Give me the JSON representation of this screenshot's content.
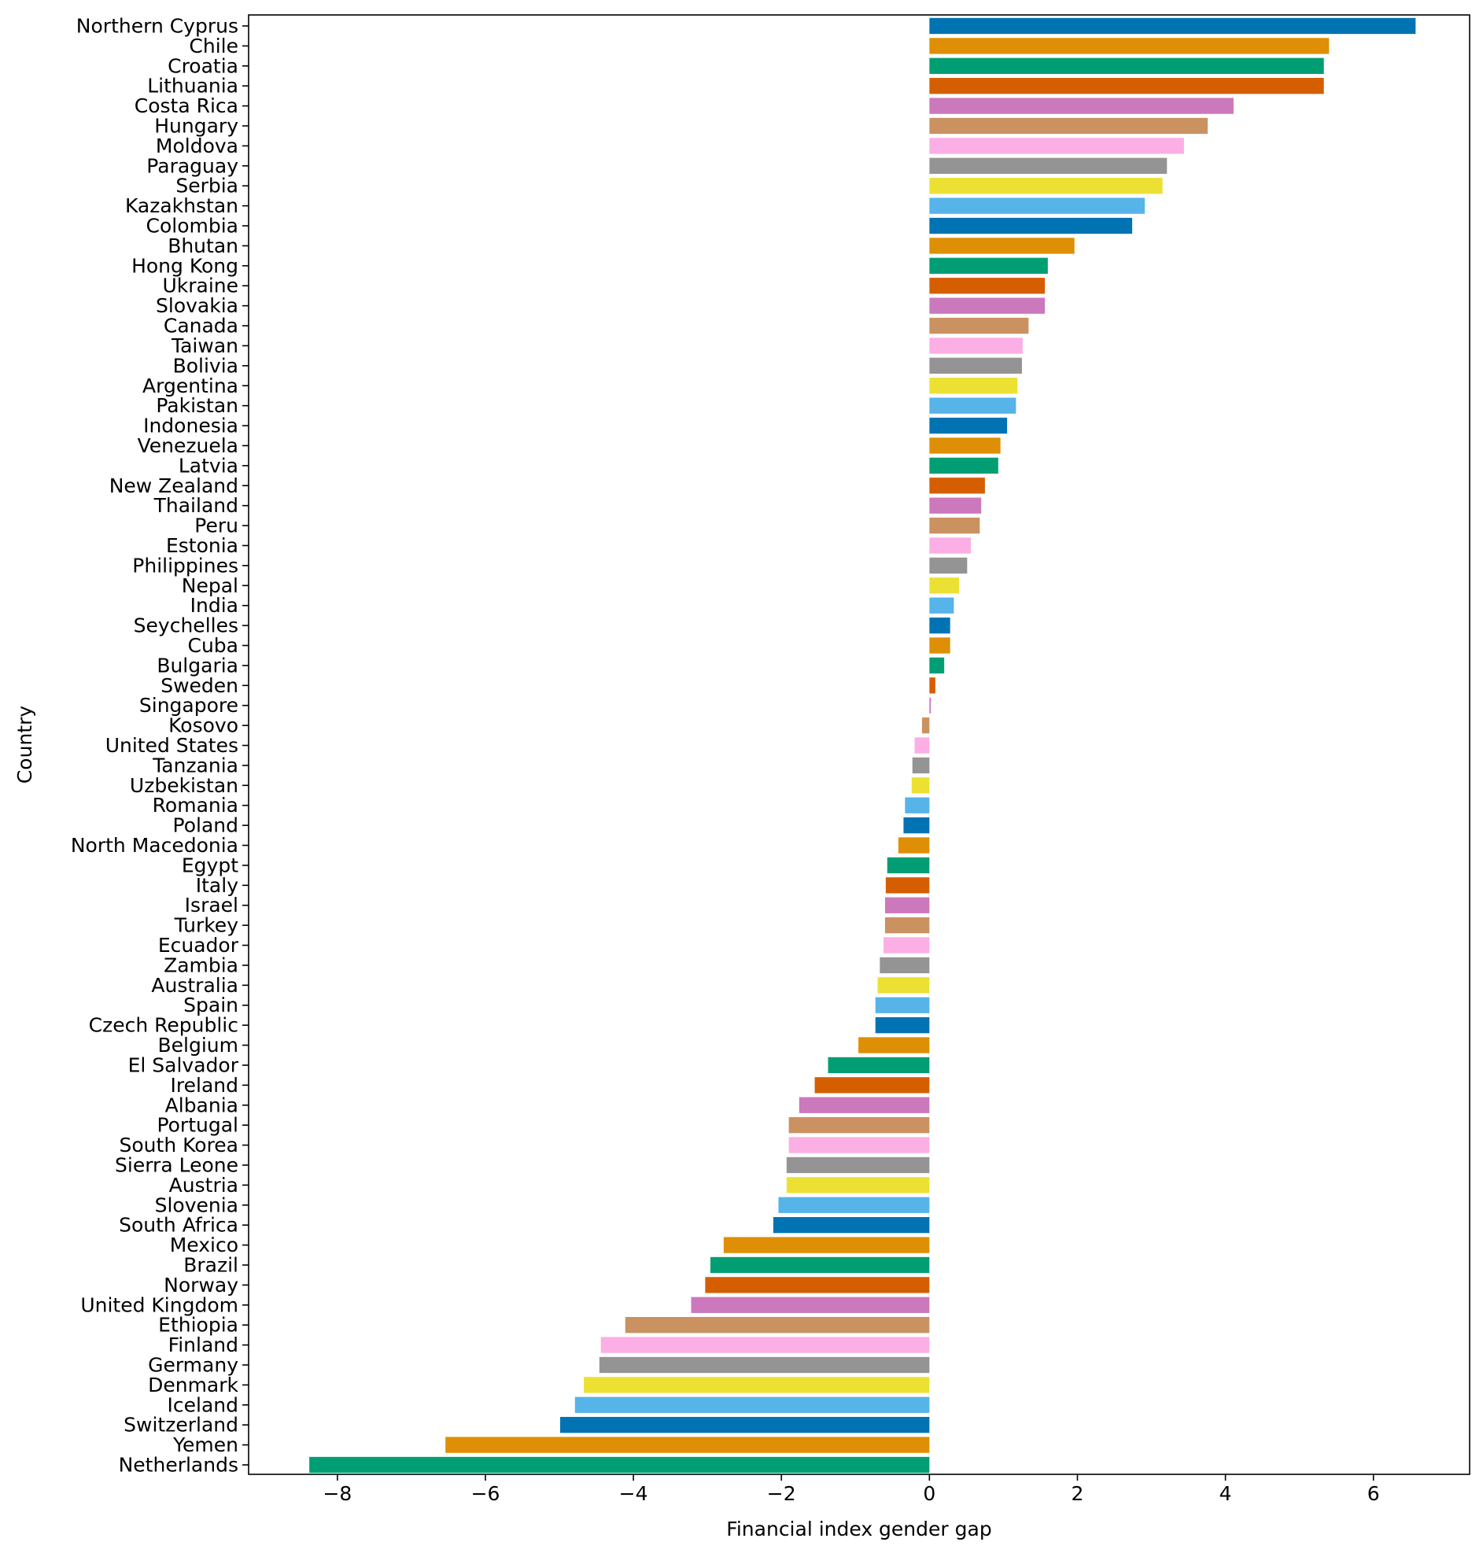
{
  "chart_data": {
    "type": "bar",
    "orientation": "horizontal",
    "title": "",
    "xlabel": "Financial index gender gap",
    "ylabel": "Country",
    "xlim": [
      -9.2,
      7.3
    ],
    "xticks": [
      -8,
      -6,
      -4,
      -2,
      0,
      2,
      4,
      6
    ],
    "xtick_labels": [
      "−8",
      "−6",
      "−4",
      "−2",
      "0",
      "2",
      "4",
      "6"
    ],
    "grid": false,
    "legend": "none",
    "palette": [
      "#0173b2",
      "#de8f05",
      "#029e73",
      "#d55e00",
      "#cc78bc",
      "#ca9161",
      "#fbafe4",
      "#949494",
      "#ece133",
      "#56b4e9"
    ],
    "categories": [
      "Northern Cyprus",
      "Chile",
      "Croatia",
      "Lithuania",
      "Costa Rica",
      "Hungary",
      "Moldova",
      "Paraguay",
      "Serbia",
      "Kazakhstan",
      "Colombia",
      "Bhutan",
      "Hong Kong",
      "Ukraine",
      "Slovakia",
      "Canada",
      "Taiwan",
      "Bolivia",
      "Argentina",
      "Pakistan",
      "Indonesia",
      "Venezuela",
      "Latvia",
      "New Zealand",
      "Thailand",
      "Peru",
      "Estonia",
      "Philippines",
      "Nepal",
      "India",
      "Seychelles",
      "Cuba",
      "Bulgaria",
      "Sweden",
      "Singapore",
      "Kosovo",
      "United States",
      "Tanzania",
      "Uzbekistan",
      "Romania",
      "Poland",
      "North Macedonia",
      "Egypt",
      "Italy",
      "Israel",
      "Turkey",
      "Ecuador",
      "Zambia",
      "Australia",
      "Spain",
      "Czech Republic",
      "Belgium",
      "El Salvador",
      "Ireland",
      "Albania",
      "Portugal",
      "South Korea",
      "Sierra Leone",
      "Austria",
      "Slovenia",
      "South Africa",
      "Mexico",
      "Brazil",
      "Norway",
      "United Kingdom",
      "Ethiopia",
      "Finland",
      "Germany",
      "Denmark",
      "Iceland",
      "Switzerland",
      "Yemen",
      "Netherlands"
    ],
    "values": [
      6.57,
      5.4,
      5.33,
      5.33,
      4.11,
      3.76,
      3.44,
      3.21,
      3.15,
      2.91,
      2.74,
      1.96,
      1.6,
      1.56,
      1.56,
      1.34,
      1.26,
      1.25,
      1.19,
      1.17,
      1.05,
      0.96,
      0.93,
      0.75,
      0.7,
      0.68,
      0.56,
      0.51,
      0.4,
      0.33,
      0.28,
      0.28,
      0.2,
      0.08,
      0.02,
      -0.1,
      -0.2,
      -0.23,
      -0.24,
      -0.33,
      -0.35,
      -0.42,
      -0.57,
      -0.59,
      -0.6,
      -0.6,
      -0.62,
      -0.67,
      -0.7,
      -0.73,
      -0.73,
      -0.96,
      -1.37,
      -1.55,
      -1.76,
      -1.9,
      -1.9,
      -1.93,
      -1.93,
      -2.04,
      -2.11,
      -2.78,
      -2.96,
      -3.03,
      -3.22,
      -4.11,
      -4.44,
      -4.46,
      -4.67,
      -4.79,
      -4.99,
      -6.54,
      -8.38
    ]
  }
}
